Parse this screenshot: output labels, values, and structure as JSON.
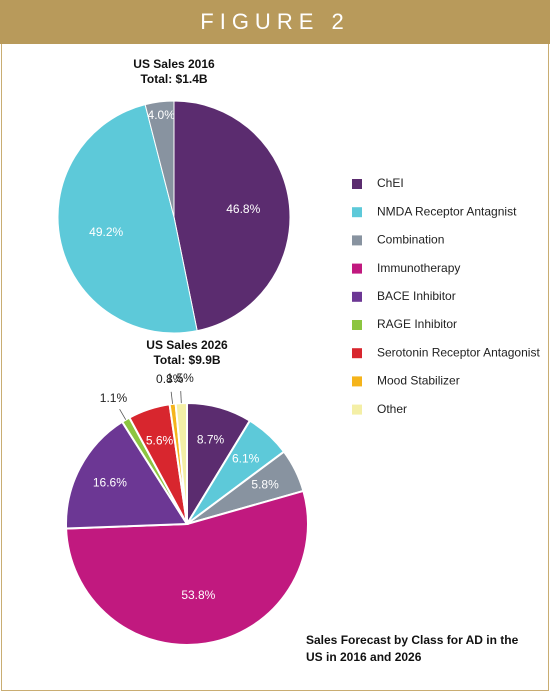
{
  "header": {
    "title": "FIGURE 2"
  },
  "chart_data": [
    {
      "type": "pie",
      "title": "US Sales 2016",
      "subtitle": "Total: $1.4B",
      "categories": [
        "ChEI",
        "NMDA Receptor Antagnist",
        "Combination"
      ],
      "values": [
        46.8,
        49.2,
        4.0
      ],
      "value_labels": [
        "46.8%",
        "49.2%",
        "4.0%"
      ],
      "colors": [
        "#5b2c6f",
        "#5dc9d9",
        "#8893a0"
      ]
    },
    {
      "type": "pie",
      "title": "US Sales 2026",
      "subtitle": "Total: $9.9B",
      "categories": [
        "ChEI",
        "NMDA Receptor Antagnist",
        "Combination",
        "Immunotherapy",
        "BACE Inhibitor",
        "RAGE Inhibitor",
        "Serotonin Receptor Antagonist",
        "Mood Stabilizer",
        "Other"
      ],
      "values": [
        8.7,
        6.1,
        5.8,
        53.8,
        16.6,
        1.1,
        5.6,
        0.8,
        1.5
      ],
      "value_labels": [
        "8.7%",
        "6.1%",
        "5.8%",
        "53.8%",
        "16.6%",
        "1.1%",
        "5.6%",
        "0.8%",
        "1.5%"
      ],
      "colors": [
        "#5b2c6f",
        "#5dc9d9",
        "#8893a0",
        "#c1197f",
        "#6c3794",
        "#8cc540",
        "#d8262e",
        "#f5b41b",
        "#f4efa6"
      ]
    }
  ],
  "caption": "Sales Forecast by Class for AD in the US in 2016 and 2026"
}
